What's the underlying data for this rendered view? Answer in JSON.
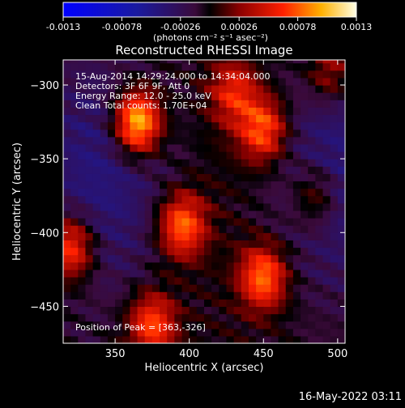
{
  "chart_data": {
    "type": "heatmap",
    "title": "Reconstructed RHESSI Image",
    "xlabel": "Heliocentric X (arcsec)",
    "ylabel": "Heliocentric Y (arcsec)",
    "xlim": [
      315,
      505
    ],
    "ylim": [
      -475,
      -283
    ],
    "x_ticks": [
      350,
      400,
      450,
      500
    ],
    "y_ticks": [
      -450,
      -400,
      -350,
      -300
    ],
    "annotation_lines": [
      "15-Aug-2014 14:29:24.000 to 14:34:04.000",
      "Detectors: 3F 6F 9F, Att 0",
      "Energy Range: 12.0 - 25.0 keV",
      "Clean     Total counts: 1.70E+04"
    ],
    "peak_label": "Position of Peak = [363,-326]",
    "peak": [
      363,
      -326
    ],
    "sources": [
      {
        "x": 365,
        "y": -325,
        "peak": 0.0013
      },
      {
        "x": 320,
        "y": -410,
        "peak": 0.0009
      },
      {
        "x": 375,
        "y": -462,
        "peak": 0.0008
      },
      {
        "x": 395,
        "y": -395,
        "peak": 0.0009
      },
      {
        "x": 450,
        "y": -430,
        "peak": 0.0009
      },
      {
        "x": 450,
        "y": -330,
        "peak": 0.00085
      },
      {
        "x": 430,
        "y": -305,
        "peak": 0.0006
      },
      {
        "x": 495,
        "y": -290,
        "peak": 0.0005
      },
      {
        "x": 485,
        "y": -375,
        "peak": 0.00045
      }
    ],
    "colorbar": {
      "min": -0.0013,
      "max": 0.0013,
      "tick_values": [
        -0.0013,
        -0.00078,
        -0.00026,
        0.00026,
        0.00078,
        0.0013
      ],
      "tick_labels": [
        "-0.0013",
        "-0.00078",
        "-0.00026",
        "0.00026",
        "0.00078",
        "0.0013"
      ],
      "units_label": "(photons cm⁻² s⁻¹ asec⁻²)"
    }
  },
  "footer": {
    "date": "16-May-2022 03:11"
  }
}
